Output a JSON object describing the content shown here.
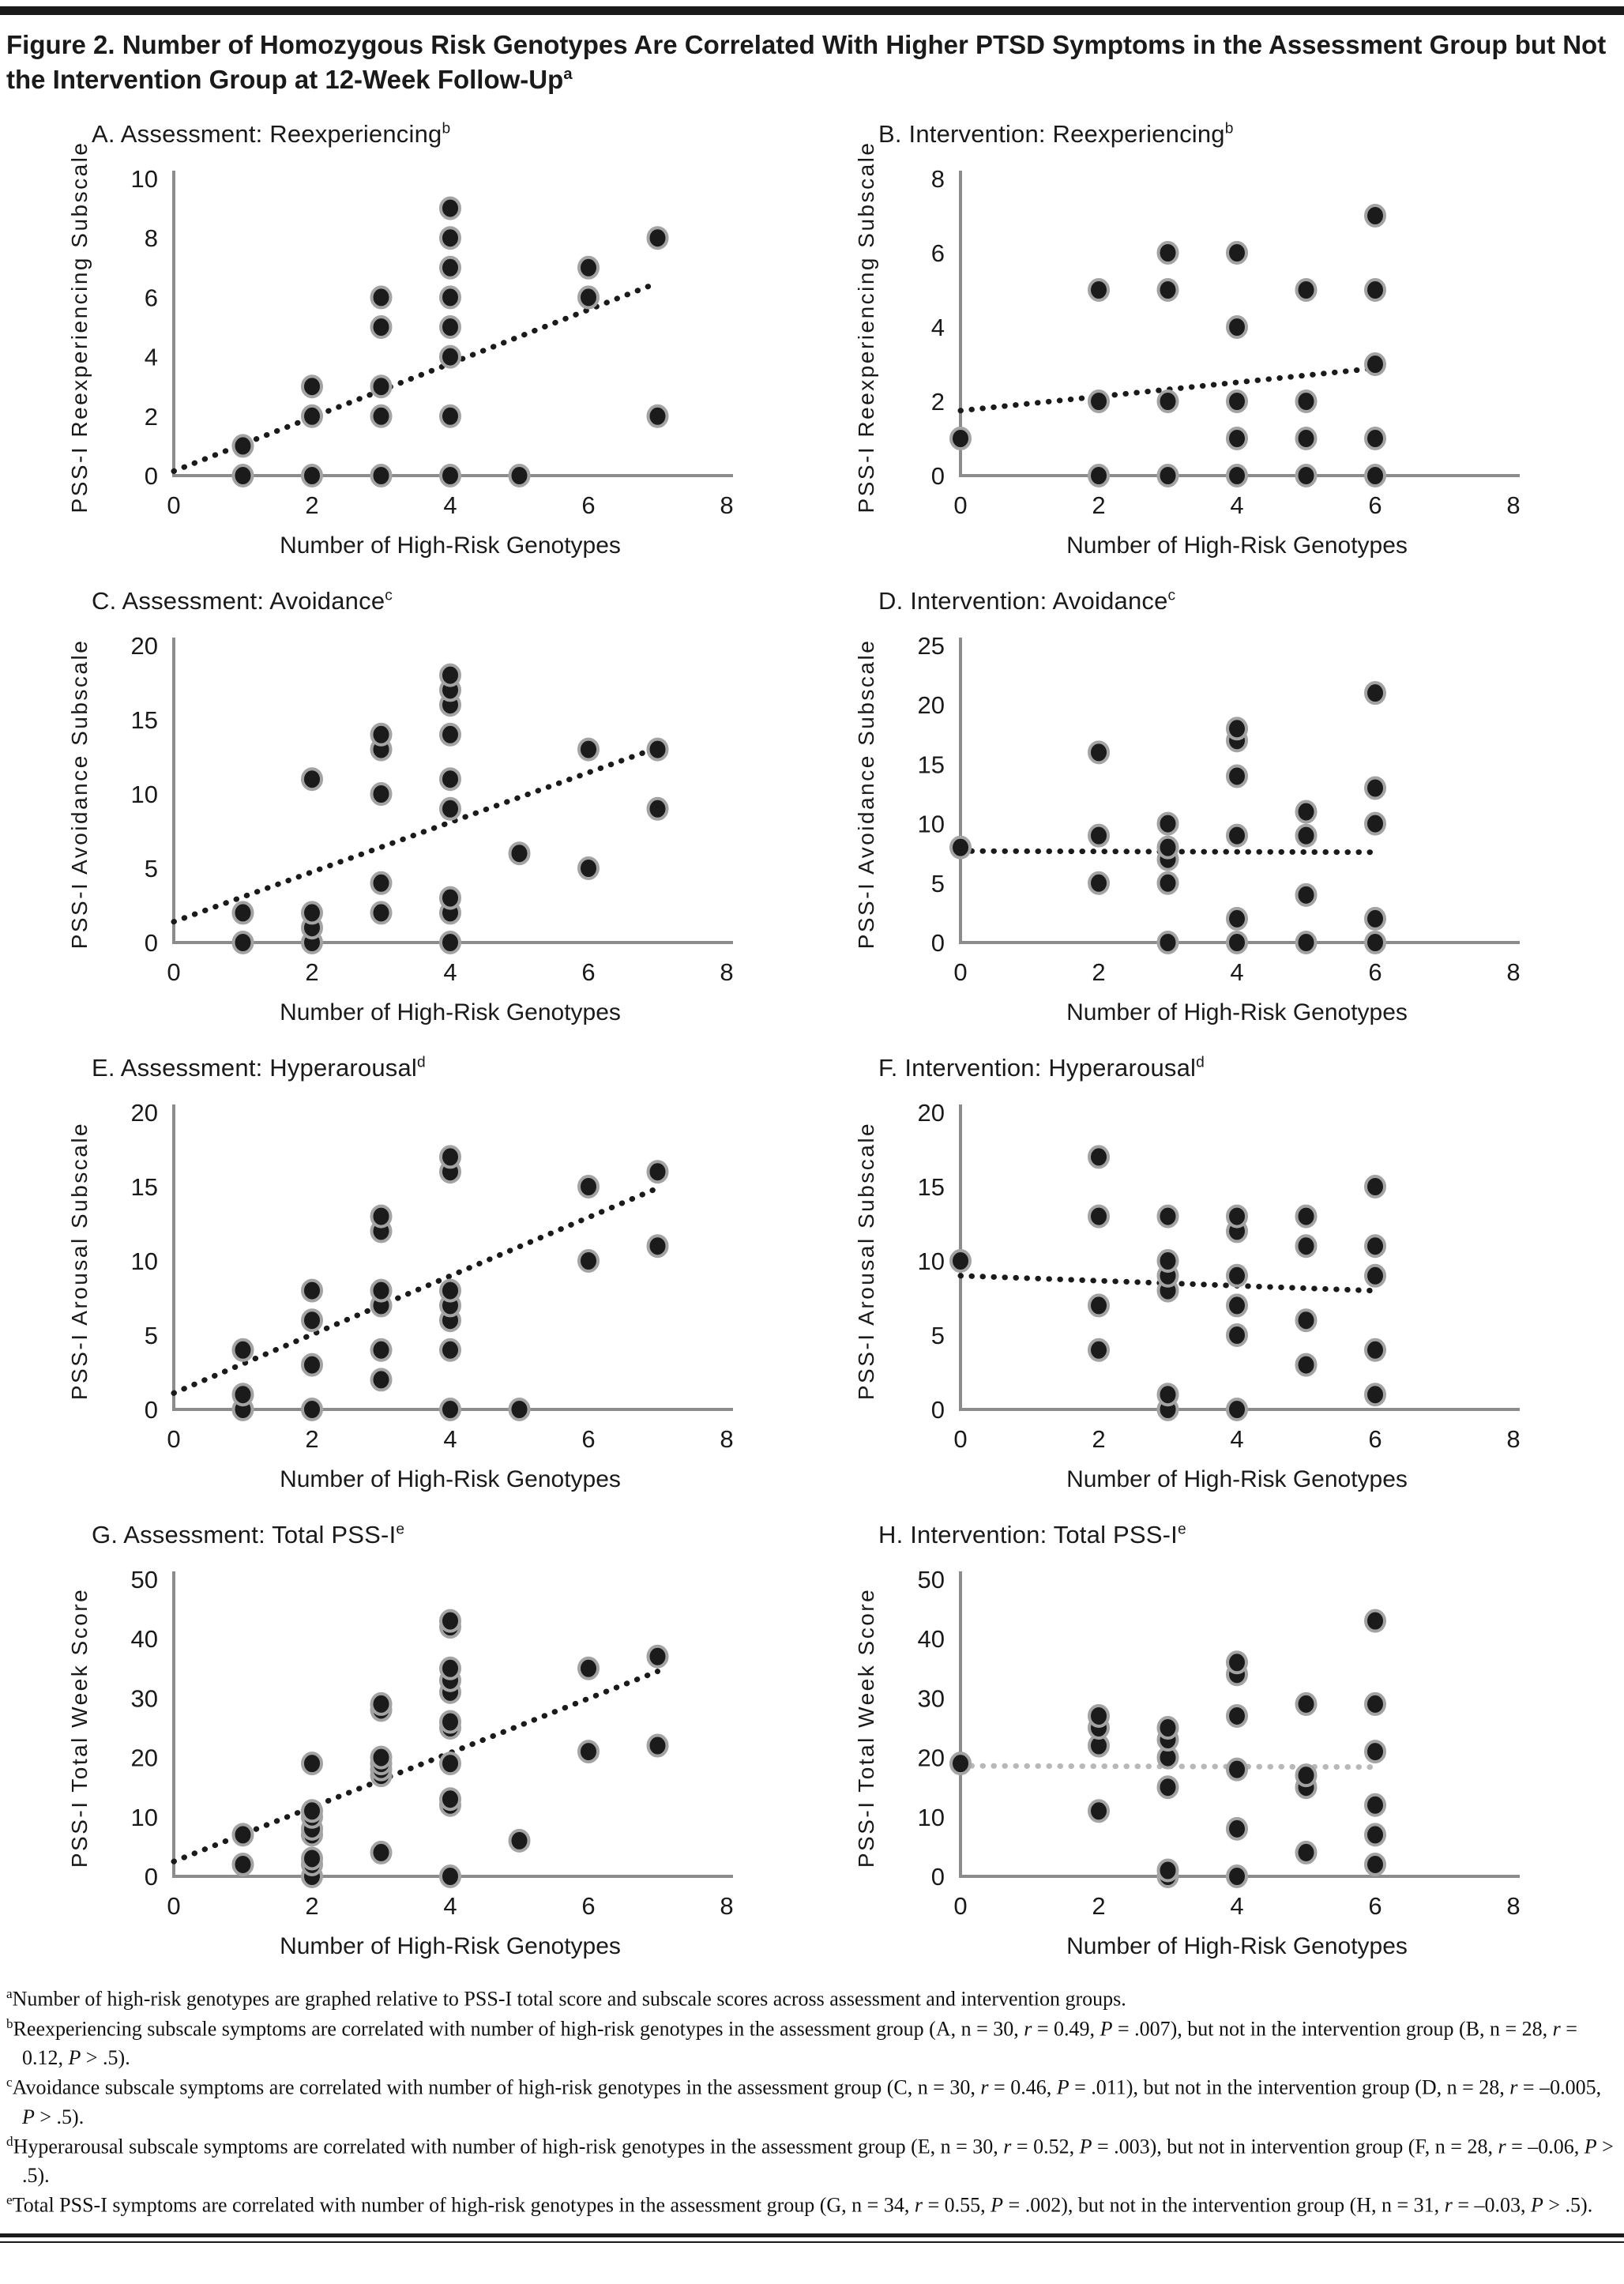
{
  "page": {
    "title": "Figure 2. Number of Homozygous Risk Genotypes Are Correlated With Higher PTSD Symptoms in the Assessment Group but Not the Intervention Group at 12-Week Follow-Up",
    "title_sup": "a",
    "colors": {
      "text": "#1a1a1a",
      "axis": "#8c8c8c",
      "marker_fill": "#1b1b1b",
      "marker_ring": "#a3a3a3",
      "trend_black": "#1a1a1a",
      "trend_gray": "#b8b8b8",
      "rule": "#1a1a1a"
    }
  },
  "chart_data": [
    {
      "id": "A",
      "type": "scatter",
      "title": "A. Assessment: Reexperiencing",
      "title_sup": "b",
      "xlabel": "Number of High-Risk Genotypes",
      "ylabel": "PSS-I Reexperiencing Subscale",
      "xlim": [
        0,
        8
      ],
      "ylim": [
        0,
        10
      ],
      "xticks": [
        0,
        2,
        4,
        6,
        8
      ],
      "yticks": [
        0,
        2,
        4,
        6,
        8,
        10
      ],
      "points": [
        [
          1,
          0
        ],
        [
          1,
          1
        ],
        [
          2,
          0
        ],
        [
          2,
          2
        ],
        [
          2,
          3
        ],
        [
          3,
          0
        ],
        [
          3,
          2
        ],
        [
          3,
          3
        ],
        [
          3,
          5
        ],
        [
          3,
          6
        ],
        [
          4,
          0
        ],
        [
          4,
          2
        ],
        [
          4,
          4
        ],
        [
          4,
          5
        ],
        [
          4,
          6
        ],
        [
          4,
          7
        ],
        [
          4,
          8
        ],
        [
          4,
          9
        ],
        [
          5,
          0
        ],
        [
          6,
          6
        ],
        [
          6,
          7
        ],
        [
          7,
          2
        ],
        [
          7,
          8
        ]
      ],
      "trend": {
        "x1": 0,
        "y1": 0.15,
        "x2": 6.9,
        "y2": 6.4,
        "color": "#1a1a1a"
      }
    },
    {
      "id": "B",
      "type": "scatter",
      "title": "B. Intervention: Reexperiencing",
      "title_sup": "b",
      "xlabel": "Number of High-Risk Genotypes",
      "ylabel": "PSS-I Reexperiencing Subscale",
      "xlim": [
        0,
        8
      ],
      "ylim": [
        0,
        8
      ],
      "xticks": [
        0,
        2,
        4,
        6,
        8
      ],
      "yticks": [
        0,
        2,
        4,
        6,
        8
      ],
      "points": [
        [
          0,
          1
        ],
        [
          2,
          0
        ],
        [
          2,
          2
        ],
        [
          2,
          5
        ],
        [
          3,
          0
        ],
        [
          3,
          2
        ],
        [
          3,
          5
        ],
        [
          3,
          6
        ],
        [
          4,
          0
        ],
        [
          4,
          1
        ],
        [
          4,
          2
        ],
        [
          4,
          4
        ],
        [
          4,
          6
        ],
        [
          5,
          0
        ],
        [
          5,
          1
        ],
        [
          5,
          2
        ],
        [
          5,
          5
        ],
        [
          6,
          0
        ],
        [
          6,
          1
        ],
        [
          6,
          3
        ],
        [
          6,
          5
        ],
        [
          6,
          7
        ]
      ],
      "trend": {
        "x1": 0,
        "y1": 1.75,
        "x2": 6.05,
        "y2": 2.9,
        "color": "#1a1a1a"
      }
    },
    {
      "id": "C",
      "type": "scatter",
      "title": "C. Assessment: Avoidance",
      "title_sup": "c",
      "xlabel": "Number of High-Risk Genotypes",
      "ylabel": "PSS-I Avoidance Subscale",
      "xlim": [
        0,
        8
      ],
      "ylim": [
        0,
        20
      ],
      "xticks": [
        0,
        2,
        4,
        6,
        8
      ],
      "yticks": [
        0,
        5,
        10,
        15,
        20
      ],
      "points": [
        [
          1,
          0
        ],
        [
          1,
          2
        ],
        [
          2,
          0
        ],
        [
          2,
          1
        ],
        [
          2,
          2
        ],
        [
          2,
          11
        ],
        [
          3,
          2
        ],
        [
          3,
          4
        ],
        [
          3,
          10
        ],
        [
          3,
          13
        ],
        [
          3,
          14
        ],
        [
          4,
          0
        ],
        [
          4,
          2
        ],
        [
          4,
          3
        ],
        [
          4,
          9
        ],
        [
          4,
          11
        ],
        [
          4,
          14
        ],
        [
          4,
          16
        ],
        [
          4,
          17
        ],
        [
          4,
          18
        ],
        [
          5,
          6
        ],
        [
          6,
          5
        ],
        [
          6,
          13
        ],
        [
          7,
          9
        ],
        [
          7,
          13
        ]
      ],
      "trend": {
        "x1": 0,
        "y1": 1.4,
        "x2": 7.05,
        "y2": 13.2,
        "color": "#1a1a1a"
      }
    },
    {
      "id": "D",
      "type": "scatter",
      "title": "D. Intervention: Avoidance",
      "title_sup": "c",
      "xlabel": "Number of High-Risk Genotypes",
      "ylabel": "PSS-I Avoidance Subscale",
      "xlim": [
        0,
        8
      ],
      "ylim": [
        0,
        25
      ],
      "xticks": [
        0,
        2,
        4,
        6,
        8
      ],
      "yticks": [
        0,
        5,
        10,
        15,
        20,
        25
      ],
      "points": [
        [
          0,
          8
        ],
        [
          2,
          5
        ],
        [
          2,
          9
        ],
        [
          2,
          16
        ],
        [
          3,
          0
        ],
        [
          3,
          5
        ],
        [
          3,
          7
        ],
        [
          3,
          8
        ],
        [
          3,
          10
        ],
        [
          4,
          0
        ],
        [
          4,
          2
        ],
        [
          4,
          9
        ],
        [
          4,
          14
        ],
        [
          4,
          17
        ],
        [
          4,
          18
        ],
        [
          5,
          0
        ],
        [
          5,
          4
        ],
        [
          5,
          9
        ],
        [
          5,
          11
        ],
        [
          6,
          0
        ],
        [
          6,
          2
        ],
        [
          6,
          10
        ],
        [
          6,
          13
        ],
        [
          6,
          21
        ]
      ],
      "trend": {
        "x1": 0,
        "y1": 7.7,
        "x2": 5.95,
        "y2": 7.6,
        "color": "#1a1a1a"
      }
    },
    {
      "id": "E",
      "type": "scatter",
      "title": "E. Assessment: Hyperarousal",
      "title_sup": "d",
      "xlabel": "Number of High-Risk Genotypes",
      "ylabel": "PSS-I Arousal Subscale",
      "xlim": [
        0,
        8
      ],
      "ylim": [
        0,
        20
      ],
      "xticks": [
        0,
        2,
        4,
        6,
        8
      ],
      "yticks": [
        0,
        5,
        10,
        15,
        20
      ],
      "points": [
        [
          1,
          0
        ],
        [
          1,
          1
        ],
        [
          1,
          4
        ],
        [
          2,
          0
        ],
        [
          2,
          3
        ],
        [
          2,
          6
        ],
        [
          2,
          8
        ],
        [
          3,
          2
        ],
        [
          3,
          4
        ],
        [
          3,
          7
        ],
        [
          3,
          8
        ],
        [
          3,
          12
        ],
        [
          3,
          13
        ],
        [
          4,
          0
        ],
        [
          4,
          4
        ],
        [
          4,
          6
        ],
        [
          4,
          7
        ],
        [
          4,
          8
        ],
        [
          4,
          16
        ],
        [
          4,
          17
        ],
        [
          5,
          0
        ],
        [
          6,
          10
        ],
        [
          6,
          15
        ],
        [
          7,
          11
        ],
        [
          7,
          16
        ]
      ],
      "trend": {
        "x1": 0,
        "y1": 1.1,
        "x2": 7.0,
        "y2": 14.9,
        "color": "#1a1a1a"
      }
    },
    {
      "id": "F",
      "type": "scatter",
      "title": "F. Intervention: Hyperarousal",
      "title_sup": "d",
      "xlabel": "Number of High-Risk Genotypes",
      "ylabel": "PSS-I Arousal Subscale",
      "xlim": [
        0,
        8
      ],
      "ylim": [
        0,
        20
      ],
      "xticks": [
        0,
        2,
        4,
        6,
        8
      ],
      "yticks": [
        0,
        5,
        10,
        15,
        20
      ],
      "points": [
        [
          0,
          10
        ],
        [
          2,
          4
        ],
        [
          2,
          7
        ],
        [
          2,
          13
        ],
        [
          2,
          17
        ],
        [
          3,
          0
        ],
        [
          3,
          1
        ],
        [
          3,
          8
        ],
        [
          3,
          9
        ],
        [
          3,
          10
        ],
        [
          3,
          13
        ],
        [
          4,
          0
        ],
        [
          4,
          5
        ],
        [
          4,
          7
        ],
        [
          4,
          9
        ],
        [
          4,
          12
        ],
        [
          4,
          13
        ],
        [
          5,
          3
        ],
        [
          5,
          6
        ],
        [
          5,
          11
        ],
        [
          5,
          13
        ],
        [
          6,
          1
        ],
        [
          6,
          4
        ],
        [
          6,
          9
        ],
        [
          6,
          11
        ],
        [
          6,
          15
        ]
      ],
      "trend": {
        "x1": 0,
        "y1": 9.0,
        "x2": 5.95,
        "y2": 8.0,
        "color": "#1a1a1a"
      }
    },
    {
      "id": "G",
      "type": "scatter",
      "title": "G. Assessment: Total PSS-I",
      "title_sup": "e",
      "xlabel": "Number of High-Risk Genotypes",
      "ylabel": "PSS-I Total Week Score",
      "xlim": [
        0,
        8
      ],
      "ylim": [
        0,
        50
      ],
      "xticks": [
        0,
        2,
        4,
        6,
        8
      ],
      "yticks": [
        0,
        10,
        20,
        30,
        40,
        50
      ],
      "points": [
        [
          1,
          2
        ],
        [
          1,
          7
        ],
        [
          2,
          0
        ],
        [
          2,
          2
        ],
        [
          2,
          3
        ],
        [
          2,
          7
        ],
        [
          2,
          8
        ],
        [
          2,
          10
        ],
        [
          2,
          11
        ],
        [
          2,
          19
        ],
        [
          3,
          4
        ],
        [
          3,
          17
        ],
        [
          3,
          18
        ],
        [
          3,
          19
        ],
        [
          3,
          20
        ],
        [
          3,
          28
        ],
        [
          3,
          29
        ],
        [
          4,
          0
        ],
        [
          4,
          12
        ],
        [
          4,
          13
        ],
        [
          4,
          19
        ],
        [
          4,
          25
        ],
        [
          4,
          26
        ],
        [
          4,
          31
        ],
        [
          4,
          33
        ],
        [
          4,
          35
        ],
        [
          4,
          42
        ],
        [
          4,
          43
        ],
        [
          5,
          6
        ],
        [
          6,
          21
        ],
        [
          6,
          35
        ],
        [
          7,
          22
        ],
        [
          7,
          37
        ]
      ],
      "trend": {
        "x1": 0,
        "y1": 2.5,
        "x2": 7.0,
        "y2": 34.5,
        "color": "#1a1a1a"
      }
    },
    {
      "id": "H",
      "type": "scatter",
      "title": "H. Intervention: Total PSS-I",
      "title_sup": "e",
      "xlabel": "Number of High-Risk Genotypes",
      "ylabel": "PSS-I Total Week Score",
      "xlim": [
        0,
        8
      ],
      "ylim": [
        0,
        50
      ],
      "xticks": [
        0,
        2,
        4,
        6,
        8
      ],
      "yticks": [
        0,
        10,
        20,
        30,
        40,
        50
      ],
      "points": [
        [
          0,
          19
        ],
        [
          2,
          11
        ],
        [
          2,
          22
        ],
        [
          2,
          25
        ],
        [
          2,
          27
        ],
        [
          3,
          0
        ],
        [
          3,
          1
        ],
        [
          3,
          15
        ],
        [
          3,
          20
        ],
        [
          3,
          23
        ],
        [
          3,
          25
        ],
        [
          4,
          0
        ],
        [
          4,
          8
        ],
        [
          4,
          18
        ],
        [
          4,
          27
        ],
        [
          4,
          34
        ],
        [
          4,
          36
        ],
        [
          5,
          4
        ],
        [
          5,
          15
        ],
        [
          5,
          17
        ],
        [
          5,
          29
        ],
        [
          6,
          2
        ],
        [
          6,
          7
        ],
        [
          6,
          12
        ],
        [
          6,
          21
        ],
        [
          6,
          29
        ],
        [
          6,
          43
        ]
      ],
      "trend": {
        "x1": 0,
        "y1": 18.6,
        "x2": 6.0,
        "y2": 18.4,
        "color": "#b8b8b8"
      }
    }
  ],
  "footnotes": [
    {
      "sup": "a",
      "segments": [
        {
          "t": "Number of high-risk genotypes are graphed relative to PSS-I total score and subscale scores across assessment and intervention groups."
        }
      ]
    },
    {
      "sup": "b",
      "segments": [
        {
          "t": "Reexperiencing subscale symptoms are correlated with number of high-risk genotypes in the assessment group (A, n = 30, "
        },
        {
          "t": "r",
          "i": true
        },
        {
          "t": " = 0.49, "
        },
        {
          "t": "P",
          "i": true
        },
        {
          "t": " = .007), but not in the intervention group (B, n = 28, "
        },
        {
          "t": "r",
          "i": true
        },
        {
          "t": " = 0.12, "
        },
        {
          "t": "P",
          "i": true
        },
        {
          "t": " > .5)."
        }
      ]
    },
    {
      "sup": "c",
      "segments": [
        {
          "t": "Avoidance subscale symptoms are correlated with number of high-risk genotypes in the assessment group (C, n = 30, "
        },
        {
          "t": "r",
          "i": true
        },
        {
          "t": " = 0.46, "
        },
        {
          "t": "P",
          "i": true
        },
        {
          "t": " = .011), but not in the intervention group (D, n = 28, "
        },
        {
          "t": "r",
          "i": true
        },
        {
          "t": " = –0.005, "
        },
        {
          "t": "P",
          "i": true
        },
        {
          "t": " > .5)."
        }
      ]
    },
    {
      "sup": "d",
      "segments": [
        {
          "t": "Hyperarousal subscale symptoms are correlated with number of high-risk genotypes in the assessment group (E, n = 30, "
        },
        {
          "t": "r",
          "i": true
        },
        {
          "t": " = 0.52, "
        },
        {
          "t": "P",
          "i": true
        },
        {
          "t": " = .003), but not in intervention group (F, n = 28, "
        },
        {
          "t": "r",
          "i": true
        },
        {
          "t": " = –0.06, "
        },
        {
          "t": "P",
          "i": true
        },
        {
          "t": " > .5)."
        }
      ]
    },
    {
      "sup": "e",
      "segments": [
        {
          "t": "Total PSS-I symptoms are correlated with number of high-risk genotypes in the assessment group (G, n = 34, "
        },
        {
          "t": "r",
          "i": true
        },
        {
          "t": " = 0.55, "
        },
        {
          "t": "P",
          "i": true
        },
        {
          "t": " = .002), but not in the intervention group (H, n = 31, "
        },
        {
          "t": "r",
          "i": true
        },
        {
          "t": " = –0.03, "
        },
        {
          "t": "P",
          "i": true
        },
        {
          "t": " > .5)."
        }
      ]
    }
  ]
}
